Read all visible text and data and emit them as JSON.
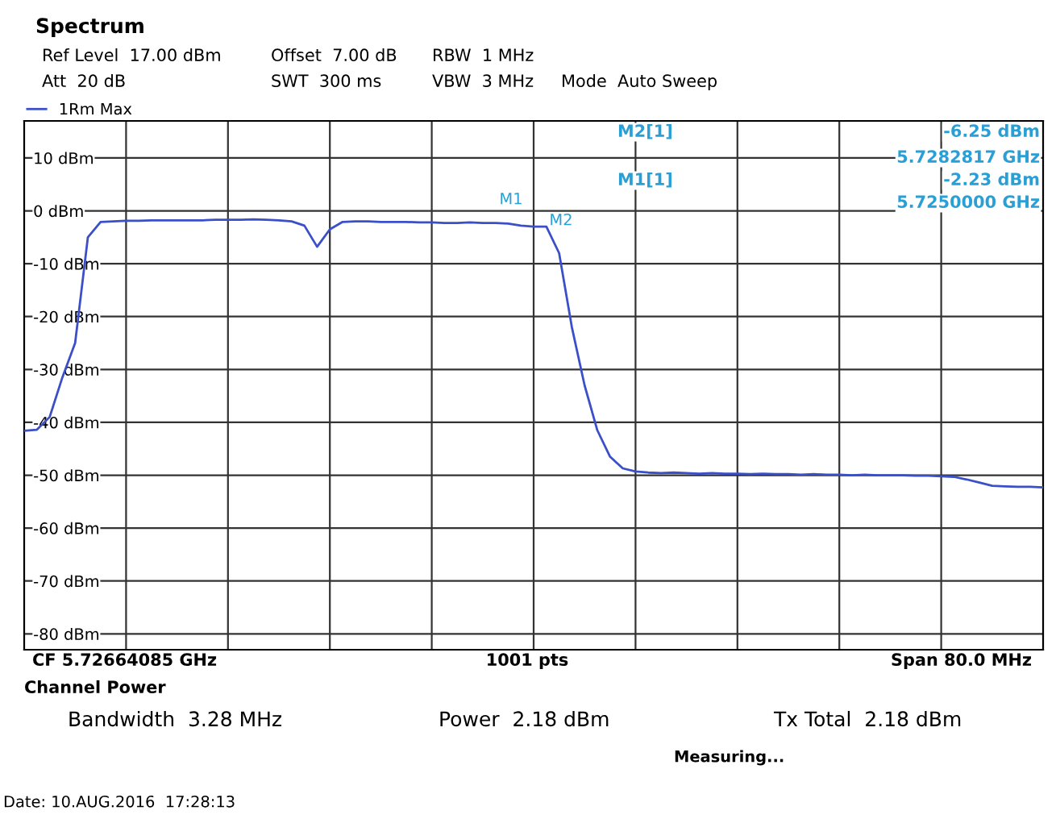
{
  "chart_data": {
    "type": "line",
    "title": "Spectrum",
    "annotations": [
      "Ref Level  17.00 dBm",
      "Offset  7.00 dB",
      "RBW  1 MHz",
      "Att  20 dB",
      "SWT  300 ms",
      "VBW  3 MHz",
      "Mode  Auto Sweep",
      "M2[1]",
      "-6.25 dBm",
      "5.7282817 GHz",
      "M1[1]",
      "-2.23 dBm",
      "5.7250000 GHz",
      "CF 5.72664085 GHz",
      "1001 pts",
      "Span 80.0 MHz",
      "Channel Power",
      "Bandwidth  3.28 MHz",
      "Power  2.18 dBm",
      "Tx Total  2.18 dBm",
      "Measuring...",
      "Date: 10.AUG.2016  17:28:13",
      "M1",
      "M2"
    ],
    "categories": [
      null,
      null,
      null,
      null,
      null,
      null,
      null,
      null,
      null,
      null,
      null,
      null,
      null,
      null,
      null,
      null,
      null,
      null,
      null,
      null,
      null,
      null,
      null,
      null,
      null,
      null,
      null,
      null,
      null,
      null,
      null,
      null,
      null,
      null,
      null,
      null,
      null,
      null,
      null,
      null,
      null,
      null,
      null,
      null,
      null,
      null,
      null,
      null,
      null,
      null,
      null,
      null,
      null,
      null,
      null,
      null,
      null,
      null,
      null,
      null,
      null,
      null,
      null,
      null,
      null,
      null,
      null,
      null,
      null,
      null,
      null,
      null,
      null,
      null,
      null,
      null,
      null,
      null,
      null,
      null,
      null
    ],
    "series": [
      {
        "name": "1Rm Max",
        "color": "#3a4fc8",
        "values": [
          -41.6,
          -41.4,
          -39,
          -31.5,
          -25,
          -5,
          -2.1,
          -2.0,
          -1.9,
          -1.9,
          -1.8,
          -1.8,
          -1.8,
          -1.8,
          -1.8,
          -1.7,
          -1.7,
          -1.7,
          -1.6,
          -1.7,
          -1.8,
          -2.0,
          -2.8,
          -6.8,
          -3.5,
          -2.1,
          -2.0,
          -2.0,
          -2.1,
          -2.1,
          -2.1,
          -2.2,
          -2.2,
          -2.3,
          -2.3,
          -2.2,
          -2.3,
          -2.3,
          -2.4,
          -2.8,
          -3.0,
          -3.0,
          -8,
          -22,
          -33,
          -41.5,
          -46.5,
          -48.7,
          -49.3,
          -49.5,
          -49.6,
          -49.5,
          -49.6,
          -49.7,
          -49.6,
          -49.7,
          -49.7,
          -49.8,
          -49.7,
          -49.8,
          -49.8,
          -49.9,
          -49.8,
          -49.9,
          -49.9,
          -50.0,
          -49.9,
          -50.0,
          -50.0,
          -50.0,
          -50.1,
          -50.1,
          -50.2,
          -50.3,
          -50.8,
          -51.4,
          -52.0,
          -52.1,
          -52.2,
          -52.2,
          -52.3
        ]
      }
    ],
    "ylim": [
      -83,
      17
    ],
    "yticks": [
      {
        "value": -80,
        "label": "-80 dBm"
      },
      {
        "value": -70,
        "label": "-70 dBm"
      },
      {
        "value": -60,
        "label": "-60 dBm"
      },
      {
        "value": -50,
        "label": "-50 dBm"
      },
      {
        "value": -40,
        "label": "-40 dBm"
      },
      {
        "value": -30,
        "label": "-30 dBm"
      },
      {
        "value": -20,
        "label": "-20 dBm"
      },
      {
        "value": -10,
        "label": "-10 dBm"
      },
      {
        "value": 0,
        "label": "0 dBm"
      },
      {
        "value": 10,
        "label": "10 dBm"
      }
    ],
    "grid": true,
    "legend": "top left",
    "marker": "none",
    "line_style": "solid"
  }
}
